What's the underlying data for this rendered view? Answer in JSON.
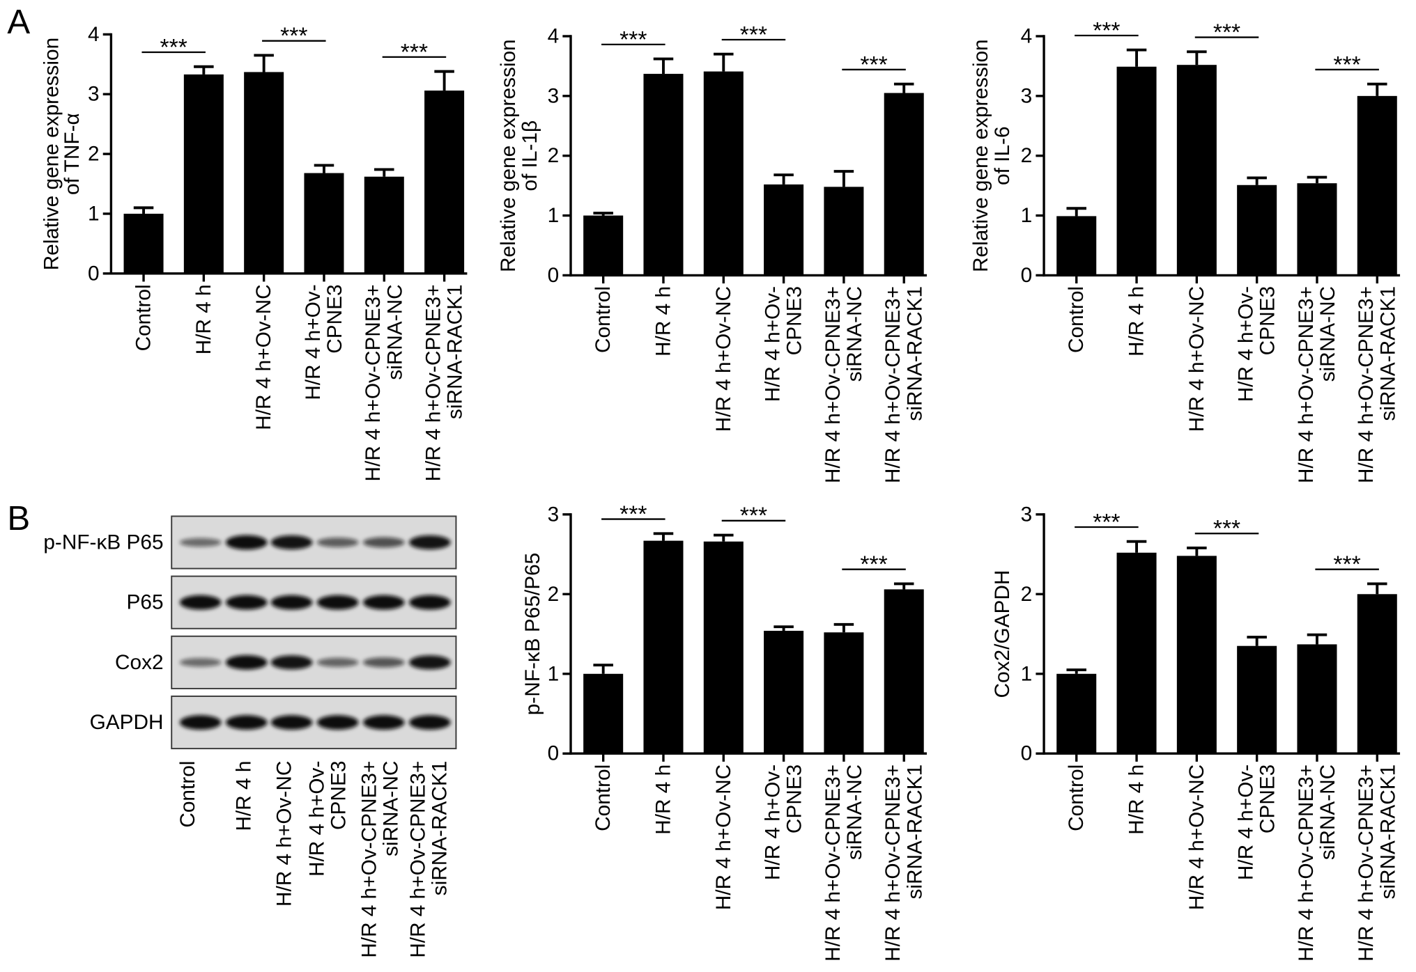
{
  "figure": {
    "panel_labels": [
      "A",
      "B"
    ]
  },
  "colors": {
    "bar": "#000000",
    "axis": "#000000",
    "text": "#000000",
    "blot_background": "#dadada",
    "blot_border": "#3a3a3a",
    "band": "#0d0d0d"
  },
  "blot": {
    "rows": [
      {
        "label": "p-NF-κB P65",
        "band_intensity": [
          0.3,
          1.0,
          0.95,
          0.4,
          0.5,
          0.95
        ]
      },
      {
        "label": "P65",
        "band_intensity": [
          1.0,
          1.0,
          1.0,
          1.0,
          1.0,
          1.0
        ]
      },
      {
        "label": "Cox2",
        "band_intensity": [
          0.3,
          1.0,
          0.95,
          0.35,
          0.45,
          0.95
        ]
      },
      {
        "label": "GAPDH",
        "band_intensity": [
          1.0,
          1.0,
          1.0,
          1.0,
          1.0,
          1.0
        ]
      }
    ],
    "lanes": [
      [
        "Control"
      ],
      [
        "H/R 4 h"
      ],
      [
        "H/R 4 h+Ov-NC"
      ],
      [
        "H/R 4 h+Ov-",
        "CPNE3"
      ],
      [
        "H/R 4 h+Ov-CPNE3+",
        "siRNA-NC"
      ],
      [
        "H/R 4 h+Ov-CPNE3+",
        "siRNA-RACK1"
      ]
    ]
  },
  "chart_data": [
    {
      "type": "bar",
      "categories": [
        [
          "Control"
        ],
        [
          "H/R 4 h"
        ],
        [
          "H/R 4 h+Ov-NC"
        ],
        [
          "H/R 4 h+Ov-",
          "CPNE3"
        ],
        [
          "H/R 4 h+Ov-CPNE3+",
          "siRNA-NC"
        ],
        [
          "H/R 4 h+Ov-CPNE3+",
          "siRNA-RACK1"
        ]
      ],
      "values": [
        1.0,
        3.33,
        3.37,
        1.68,
        1.62,
        3.06
      ],
      "errors": [
        0.1,
        0.13,
        0.28,
        0.13,
        0.12,
        0.32
      ],
      "ylabel": [
        "Relative gene expression",
        "of TNF-α"
      ],
      "ylim": [
        0,
        4
      ],
      "yticks": [
        0,
        1,
        2,
        3,
        4
      ],
      "grid": false,
      "significance": [
        {
          "pair": [
            0,
            1
          ],
          "label": "***"
        },
        {
          "pair": [
            2,
            3
          ],
          "label": "***"
        },
        {
          "pair": [
            4,
            5
          ],
          "label": "***"
        }
      ]
    },
    {
      "type": "bar",
      "categories": [
        [
          "Control"
        ],
        [
          "H/R 4 h"
        ],
        [
          "H/R 4 h+Ov-NC"
        ],
        [
          "H/R 4 h+Ov-",
          "CPNE3"
        ],
        [
          "H/R 4 h+Ov-CPNE3+",
          "siRNA-NC"
        ],
        [
          "H/R 4 h+Ov-CPNE3+",
          "siRNA-RACK1"
        ]
      ],
      "values": [
        1.0,
        3.37,
        3.41,
        1.52,
        1.48,
        3.05
      ],
      "errors": [
        0.04,
        0.25,
        0.29,
        0.16,
        0.26,
        0.15
      ],
      "ylabel": [
        "Relative gene expression",
        "of IL-1β"
      ],
      "ylim": [
        0,
        4
      ],
      "yticks": [
        0,
        1,
        2,
        3,
        4
      ],
      "grid": false,
      "significance": [
        {
          "pair": [
            0,
            1
          ],
          "label": "***"
        },
        {
          "pair": [
            2,
            3
          ],
          "label": "***"
        },
        {
          "pair": [
            4,
            5
          ],
          "label": "***"
        }
      ]
    },
    {
      "type": "bar",
      "categories": [
        [
          "Control"
        ],
        [
          "H/R 4 h"
        ],
        [
          "H/R 4 h+Ov-NC"
        ],
        [
          "H/R 4 h+Ov-",
          "CPNE3"
        ],
        [
          "H/R 4 h+Ov-CPNE3+",
          "siRNA-NC"
        ],
        [
          "H/R 4 h+Ov-CPNE3+",
          "siRNA-RACK1"
        ]
      ],
      "values": [
        0.99,
        3.49,
        3.52,
        1.51,
        1.54,
        3.0
      ],
      "errors": [
        0.13,
        0.28,
        0.22,
        0.12,
        0.1,
        0.2
      ],
      "ylabel": [
        "Relative gene expression",
        "of IL-6"
      ],
      "ylim": [
        0,
        4
      ],
      "yticks": [
        0,
        1,
        2,
        3,
        4
      ],
      "grid": false,
      "significance": [
        {
          "pair": [
            0,
            1
          ],
          "label": "***"
        },
        {
          "pair": [
            2,
            3
          ],
          "label": "***"
        },
        {
          "pair": [
            4,
            5
          ],
          "label": "***"
        }
      ]
    },
    {
      "type": "bar",
      "categories": [
        [
          "Control"
        ],
        [
          "H/R 4 h"
        ],
        [
          "H/R 4 h+Ov-NC"
        ],
        [
          "H/R 4 h+Ov-",
          "CPNE3"
        ],
        [
          "H/R 4 h+Ov-CPNE3+",
          "siRNA-NC"
        ],
        [
          "H/R 4 h+Ov-CPNE3+",
          "siRNA-RACK1"
        ]
      ],
      "values": [
        1.0,
        2.67,
        2.66,
        1.54,
        1.52,
        2.06
      ],
      "errors": [
        0.11,
        0.09,
        0.08,
        0.05,
        0.1,
        0.07
      ],
      "ylabel": [
        "p-NF-κB P65/P65"
      ],
      "ylim": [
        0,
        3
      ],
      "yticks": [
        0,
        1,
        2,
        3
      ],
      "grid": false,
      "significance": [
        {
          "pair": [
            0,
            1
          ],
          "label": "***"
        },
        {
          "pair": [
            2,
            3
          ],
          "label": "***"
        },
        {
          "pair": [
            4,
            5
          ],
          "label": "***"
        }
      ]
    },
    {
      "type": "bar",
      "categories": [
        [
          "Control"
        ],
        [
          "H/R 4 h"
        ],
        [
          "H/R 4 h+Ov-NC"
        ],
        [
          "H/R 4 h+Ov-",
          "CPNE3"
        ],
        [
          "H/R 4 h+Ov-CPNE3+",
          "siRNA-NC"
        ],
        [
          "H/R 4 h+Ov-CPNE3+",
          "siRNA-RACK1"
        ]
      ],
      "values": [
        1.0,
        2.52,
        2.48,
        1.35,
        1.37,
        2.0
      ],
      "errors": [
        0.05,
        0.14,
        0.1,
        0.11,
        0.12,
        0.13
      ],
      "ylabel": [
        "Cox2/GAPDH"
      ],
      "ylim": [
        0,
        3
      ],
      "yticks": [
        0,
        1,
        2,
        3
      ],
      "grid": false,
      "significance": [
        {
          "pair": [
            0,
            1
          ],
          "label": "***"
        },
        {
          "pair": [
            2,
            3
          ],
          "label": "***"
        },
        {
          "pair": [
            4,
            5
          ],
          "label": "***"
        }
      ]
    }
  ]
}
